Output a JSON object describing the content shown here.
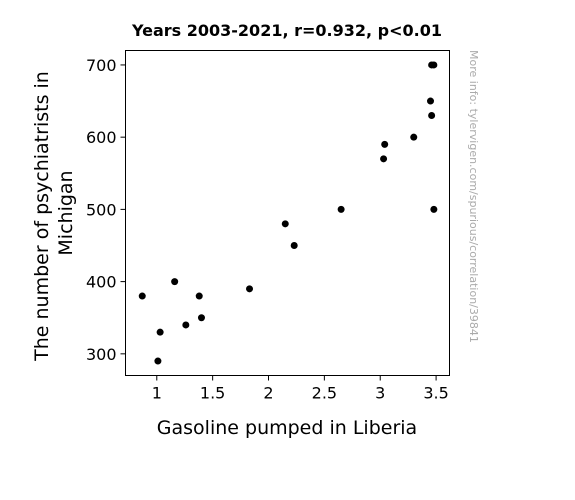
{
  "chart_data": {
    "type": "scatter",
    "title": "Years 2003-2021, r=0.932, p<0.01",
    "xlabel": "Gasoline pumped in Liberia",
    "ylabel_lines": [
      "The number of psychiatrists in",
      "Michigan"
    ],
    "xlim": [
      0.72,
      3.62
    ],
    "ylim": [
      270,
      720
    ],
    "xticks": [
      1,
      1.5,
      2,
      2.5,
      3,
      3.5
    ],
    "xtick_labels": [
      "1",
      "1.5",
      "2",
      "2.5",
      "3",
      "3.5"
    ],
    "yticks": [
      300,
      400,
      500,
      600,
      700
    ],
    "ytick_labels": [
      "300",
      "400",
      "500",
      "600",
      "700"
    ],
    "grid": false,
    "marker_color": "#000000",
    "points": [
      {
        "x": 0.87,
        "y": 380
      },
      {
        "x": 1.01,
        "y": 290
      },
      {
        "x": 1.03,
        "y": 330
      },
      {
        "x": 1.16,
        "y": 400
      },
      {
        "x": 1.26,
        "y": 340
      },
      {
        "x": 1.38,
        "y": 380
      },
      {
        "x": 1.4,
        "y": 350
      },
      {
        "x": 1.83,
        "y": 390
      },
      {
        "x": 2.15,
        "y": 480
      },
      {
        "x": 2.23,
        "y": 450
      },
      {
        "x": 2.65,
        "y": 500
      },
      {
        "x": 3.03,
        "y": 570
      },
      {
        "x": 3.04,
        "y": 590
      },
      {
        "x": 3.3,
        "y": 600
      },
      {
        "x": 3.45,
        "y": 650
      },
      {
        "x": 3.46,
        "y": 630
      },
      {
        "x": 3.46,
        "y": 700
      },
      {
        "x": 3.48,
        "y": 700
      },
      {
        "x": 3.48,
        "y": 500
      }
    ]
  },
  "watermark": "More info: tylervigen.com/spurious/correlation/39841"
}
